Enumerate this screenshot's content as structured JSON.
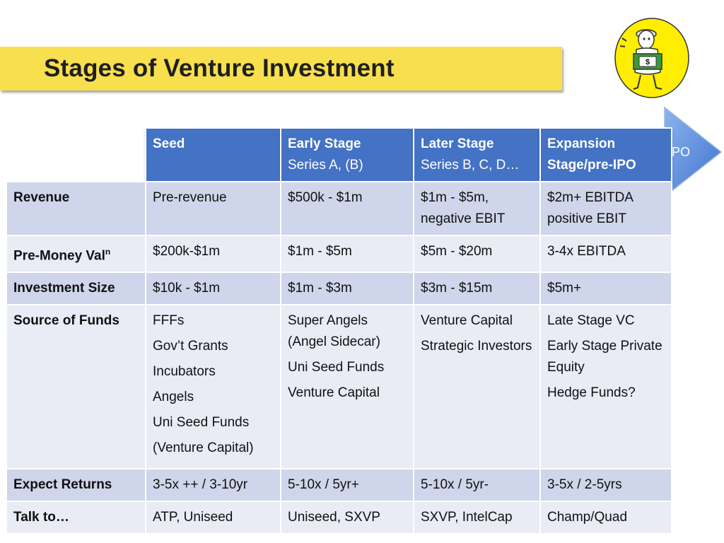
{
  "title": "Stages of Venture Investment",
  "ipo_label": "IPO",
  "mascot_badge": "$",
  "columns": [
    {
      "title": "Seed",
      "subtitle": ""
    },
    {
      "title": "Early Stage",
      "subtitle": "Series A, (B)"
    },
    {
      "title": "Later Stage",
      "subtitle": "Series B, C, D…"
    },
    {
      "title": "Expansion Stage/pre-IPO",
      "subtitle": ""
    }
  ],
  "rows": [
    {
      "label": "Revenue",
      "cells": [
        [
          "Pre-revenue"
        ],
        [
          "$500k - $1m"
        ],
        [
          "$1m - $5m,",
          "negative EBIT"
        ],
        [
          "$2m+ EBITDA",
          "positive EBIT"
        ]
      ]
    },
    {
      "label": "Pre-Money Val",
      "label_sup": "n",
      "cells": [
        [
          "$200k-$1m"
        ],
        [
          "$1m - $5m"
        ],
        [
          "$5m - $20m"
        ],
        [
          "3-4x EBITDA"
        ]
      ]
    },
    {
      "label": "Investment Size",
      "cells": [
        [
          "$10k - $1m"
        ],
        [
          "$1m - $3m"
        ],
        [
          "$3m - $15m"
        ],
        [
          "$5m+"
        ]
      ]
    },
    {
      "label": "Source of Funds",
      "cells": [
        [
          "FFFs",
          "Gov’t Grants",
          "Incubators",
          "Angels",
          "Uni Seed Funds",
          "(Venture Capital)"
        ],
        [
          "Super Angels (Angel Sidecar)",
          "Uni Seed Funds",
          "Venture Capital"
        ],
        [
          "Venture Capital",
          "Strategic Investors"
        ],
        [
          "Late Stage VC",
          "Early Stage Private Equity",
          "Hedge Funds?"
        ]
      ]
    },
    {
      "label": "Expect Returns",
      "cells": [
        [
          "3-5x ++ / 3-10yr"
        ],
        [
          "5-10x / 5yr+"
        ],
        [
          "5-10x / 5yr-"
        ],
        [
          "3-5x / 2-5yrs"
        ]
      ]
    },
    {
      "label": "Talk to…",
      "cells": [
        [
          "ATP, Uniseed"
        ],
        [
          "Uniseed, SXVP"
        ],
        [
          "SXVP, IntelCap"
        ],
        [
          "Champ/Quad"
        ]
      ]
    }
  ],
  "colors": {
    "title_bar": "#f7df4e",
    "header": "#4472c4",
    "row_dark": "#cfd5ea",
    "row_light": "#e9ebf5",
    "arrow": "#4a7fd6"
  }
}
